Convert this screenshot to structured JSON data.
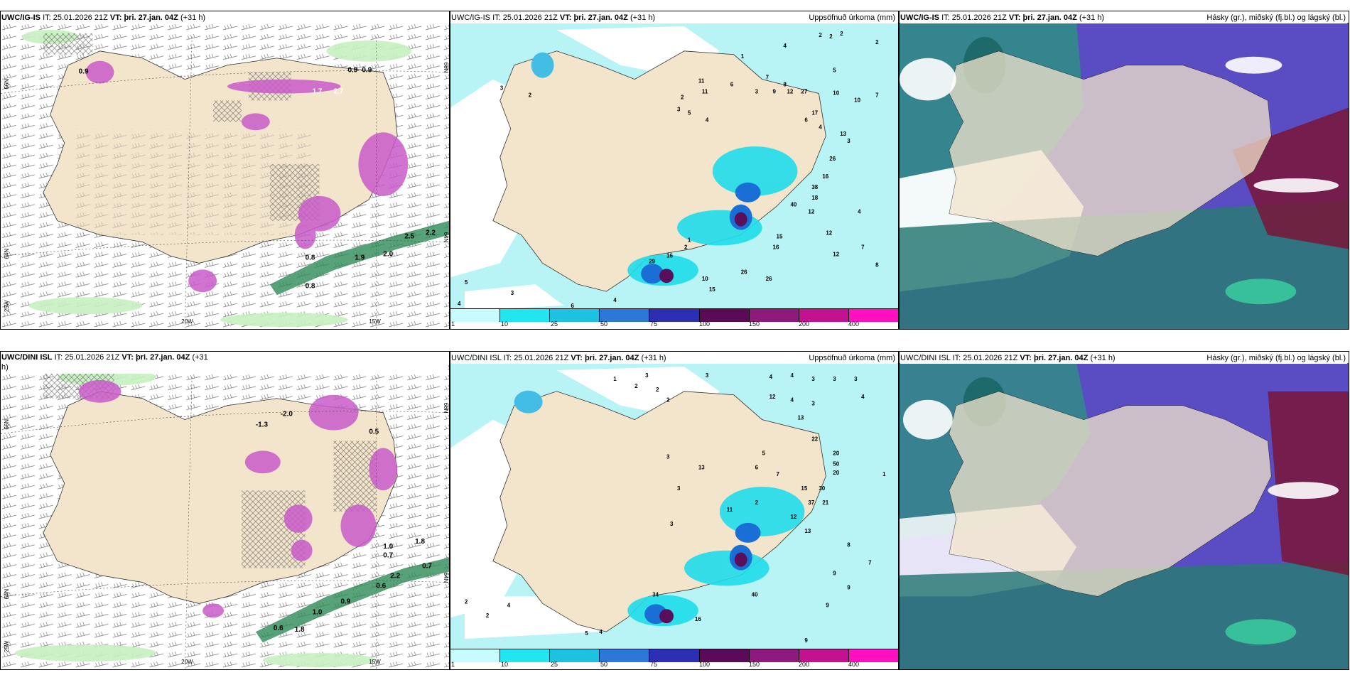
{
  "colors": {
    "land": "#f3e4cc",
    "sea": "#ffffff",
    "precip_light": "#b8f3f5",
    "precip_mid": "#1fdcea",
    "precip_strong": "#1aa6cf",
    "precip_core": "#5a0f5b",
    "pink": "#d27ad8",
    "green_light": "#c8f0c0",
    "green_dark": "#1a7a3c",
    "cloud_high": "#5a3fbd",
    "cloud_mid": "#2a8a80",
    "cloud_low": "#6a0f2a"
  },
  "panels": [
    {
      "id": "t-left",
      "model": "UWC/IG-IS",
      "it_label": "IT:",
      "it_value": "25.01.2026 21Z",
      "vt_label": "VT:",
      "vt_value": "þri. 27.jan. 04Z",
      "lead": "(+31 h)",
      "title_right": "",
      "lat_labels": [
        "66N",
        "64N",
        "25W"
      ],
      "lon_labels": [
        "20W",
        "15W"
      ],
      "right_lat": [
        "66N",
        "64N"
      ],
      "values": [
        "0.9",
        "0.9",
        "0.9",
        "1.7",
        "2.7",
        "2.5",
        "2.2",
        "2.0",
        "0.8",
        "0.8",
        "1.9"
      ]
    },
    {
      "id": "t-mid",
      "model": "UWC/IG-IS",
      "it_label": "IT:",
      "it_value": "25.01.2026 21Z",
      "vt_label": "VT:",
      "vt_value": "þri. 27.jan. 04Z",
      "lead": "(+31 h)",
      "title_right": "Uppsöfnuð úrkoma (mm)",
      "values": [
        "2",
        "2",
        "2",
        "2",
        "4",
        "1",
        "11",
        "11",
        "6",
        "3",
        "7",
        "8",
        "9",
        "12",
        "27",
        "5",
        "10",
        "10",
        "7",
        "2",
        "3",
        "5",
        "4",
        "6",
        "4",
        "17",
        "13",
        "26",
        "3",
        "16",
        "38",
        "40",
        "12",
        "18",
        "15",
        "12",
        "16",
        "26",
        "26",
        "15",
        "10",
        "29",
        "16",
        "2",
        "1",
        "5",
        "3",
        "4",
        "4",
        "6",
        "7",
        "8",
        "12",
        "4",
        "3",
        "2"
      ]
    },
    {
      "id": "t-right",
      "model": "UWC/IG-IS",
      "it_label": "IT:",
      "it_value": "25.01.2026 21Z",
      "vt_label": "VT:",
      "vt_value": "þri. 27.jan. 04Z",
      "lead": "(+31 h)",
      "title_right": "Hásky (gr.), miðský (fj.bl.) og lágský (bl.)"
    },
    {
      "id": "b-left",
      "model": "UWC/DINI ISL",
      "it_label": "IT:",
      "it_value": "25.01.2026 21Z",
      "vt_label": "VT:",
      "vt_value": "þri. 27.jan. 04Z",
      "lead": "(+31",
      "lead2": "h)",
      "title_right": "",
      "lat_labels": [
        "66N",
        "64N",
        "25W"
      ],
      "lon_labels": [
        "20W",
        "15W"
      ],
      "right_lat": [
        "66N",
        "64N"
      ],
      "values": [
        "0.5",
        "-2.0",
        "-1.3",
        "0.7",
        "1.0",
        "1.8",
        "0.7",
        "0.6",
        "0.9",
        "1.0",
        "1.8",
        "0.6",
        "2.2"
      ]
    },
    {
      "id": "b-mid",
      "model": "UWC/DINI ISL",
      "it_label": "IT:",
      "it_value": "25.01.2026 21Z",
      "vt_label": "VT:",
      "vt_value": "þri. 27.jan. 04Z",
      "lead": "(+31 h)",
      "title_right": "Uppsöfnuð úrkoma (mm)",
      "values": [
        "1",
        "2",
        "2",
        "3",
        "2",
        "3",
        "4",
        "4",
        "3",
        "3",
        "3",
        "12",
        "4",
        "3",
        "4",
        "13",
        "22",
        "20",
        "50",
        "20",
        "37",
        "21",
        "30",
        "15",
        "12",
        "13",
        "7",
        "5",
        "6",
        "8",
        "9",
        "2",
        "11",
        "13",
        "3",
        "3",
        "40",
        "16",
        "34",
        "3",
        "2",
        "2",
        "4",
        "5",
        "4",
        "9",
        "9",
        "7",
        "9",
        "1"
      ]
    },
    {
      "id": "b-right",
      "model": "UWC/DINI ISL",
      "it_label": "IT:",
      "it_value": "25.01.2026 21Z",
      "vt_label": "VT:",
      "vt_value": "þri. 27.jan. 04Z",
      "lead": "(+31 h)",
      "title_right": "Hásky (gr.), miðský (fj.bl.) og lágský (bl.)"
    }
  ],
  "colorbar": {
    "ticks": [
      "1",
      "10",
      "25",
      "50",
      "75",
      "100",
      "150",
      "200",
      "400"
    ],
    "box_colors": [
      "#c8fbfd",
      "#21e5ef",
      "#1cc2e0",
      "#2b78d9",
      "#2c2fb3",
      "#5a0a57",
      "#8e1a7e",
      "#c3128f",
      "#ff0fc0",
      "#f4b8ec"
    ]
  }
}
